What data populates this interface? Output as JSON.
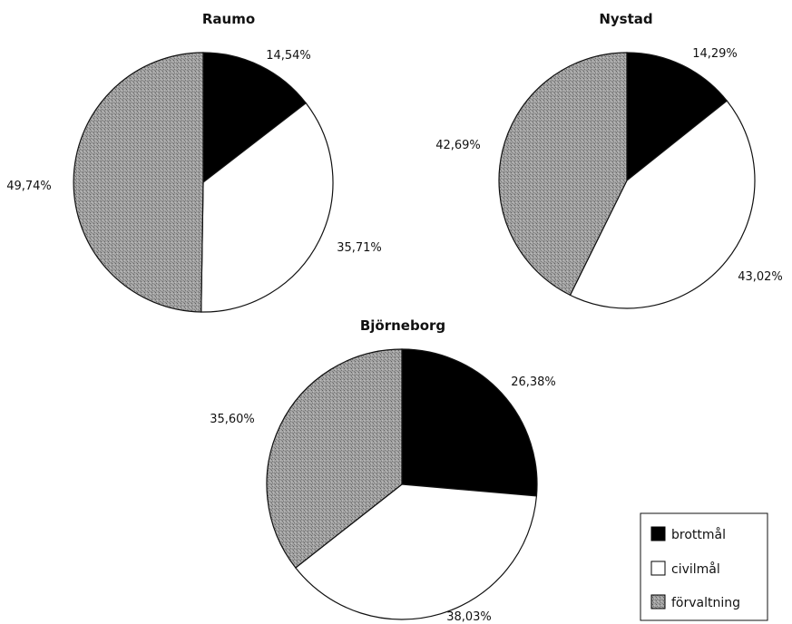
{
  "chart_data": [
    {
      "type": "pie",
      "title": "Raumo",
      "categories": [
        "brottmål",
        "civilmål",
        "förvaltning"
      ],
      "values": [
        14.54,
        35.71,
        49.74
      ],
      "labels": [
        "14,54%",
        "35,71%",
        "49,74%"
      ]
    },
    {
      "type": "pie",
      "title": "Nystad",
      "categories": [
        "brottmål",
        "civilmål",
        "förvaltning"
      ],
      "values": [
        14.29,
        43.02,
        42.69
      ],
      "labels": [
        "14,29%",
        "43,02%",
        "42,69%"
      ]
    },
    {
      "type": "pie",
      "title": "Björneborg",
      "categories": [
        "brottmål",
        "civilmål",
        "förvaltning"
      ],
      "values": [
        26.38,
        38.03,
        35.6
      ],
      "labels": [
        "26,38%",
        "38,03%",
        "35,60%"
      ]
    }
  ],
  "legend": {
    "placement": "bottom-right",
    "items": [
      {
        "label": "brottmål",
        "color": "#000000"
      },
      {
        "label": "civilmål",
        "color": "#ffffff"
      },
      {
        "label": "förvaltning",
        "color": "#9a9a9a"
      }
    ]
  }
}
